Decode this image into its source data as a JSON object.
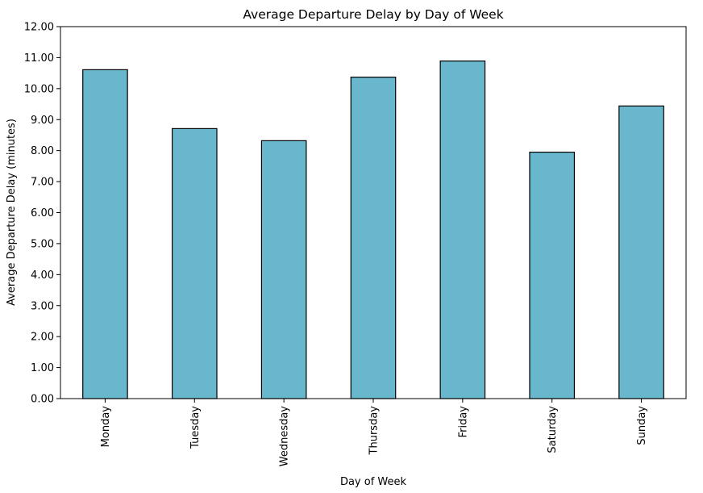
{
  "chart_data": {
    "type": "bar",
    "title": "Average Departure Delay by Day of Week",
    "xlabel": "Day of Week",
    "ylabel": "Average Departure Delay (minutes)",
    "categories": [
      "Monday",
      "Tuesday",
      "Wednesday",
      "Thursday",
      "Friday",
      "Saturday",
      "Sunday"
    ],
    "values": [
      10.61,
      8.71,
      8.32,
      10.37,
      10.89,
      7.95,
      9.44
    ],
    "ylim": [
      0,
      12
    ],
    "yticks": [
      "0.00",
      "1.00",
      "2.00",
      "3.00",
      "4.00",
      "5.00",
      "6.00",
      "7.00",
      "8.00",
      "9.00",
      "10.00",
      "11.00",
      "12.00"
    ],
    "grid": false,
    "legend": "none",
    "colors": {
      "bar_fill": "#69b7cc",
      "bar_edge": "#000000",
      "axis": "#000000"
    }
  }
}
